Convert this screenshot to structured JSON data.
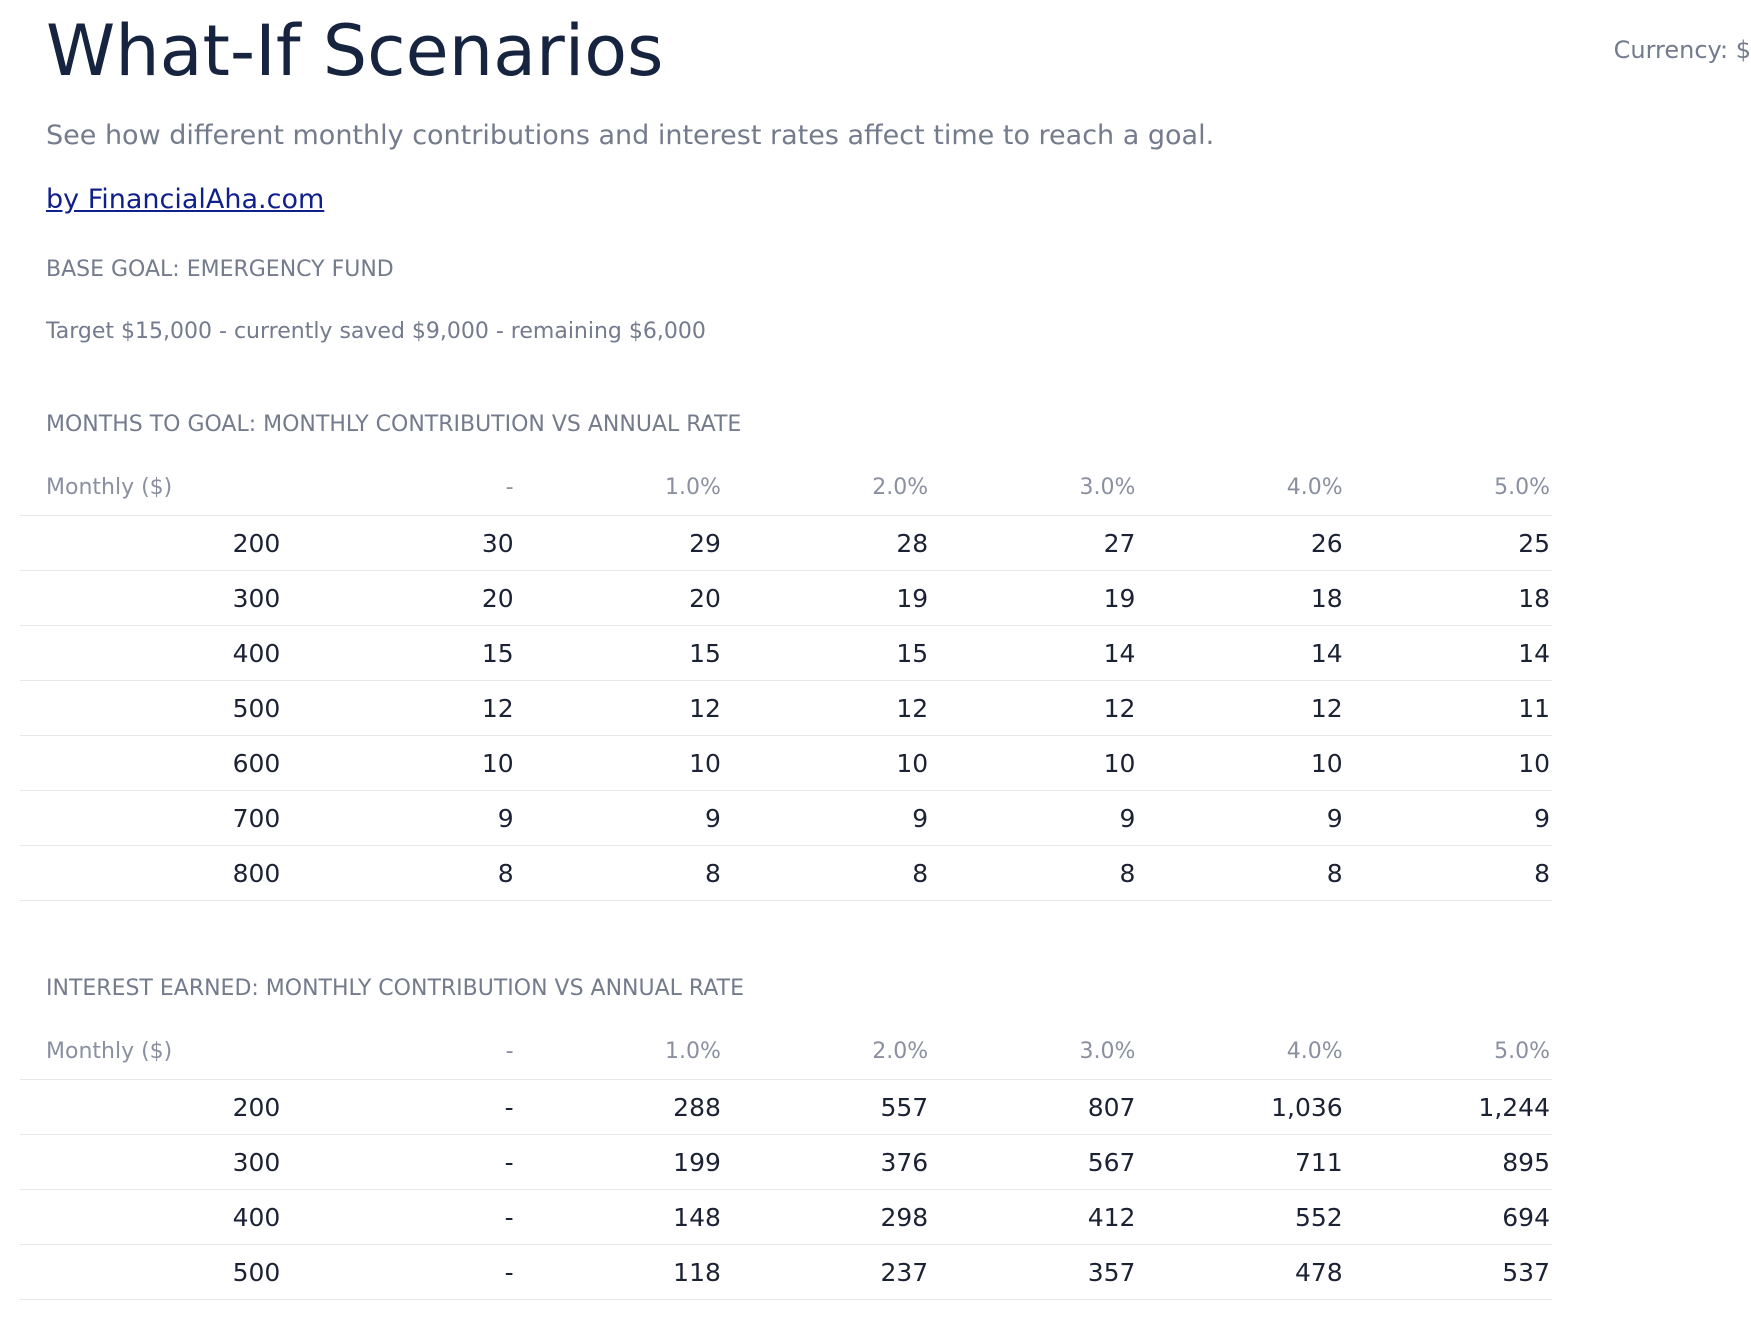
{
  "header": {
    "title": "What-If Scenarios",
    "currency": "Currency: $",
    "subtitle": "See how different monthly contributions and interest rates affect time to reach a goal.",
    "byline": "by FinancialAha.com"
  },
  "goal": {
    "heading": "BASE GOAL: EMERGENCY FUND",
    "detail": "Target $15,000 - currently saved $9,000 - remaining $6,000"
  },
  "months_table": {
    "heading": "MONTHS TO GOAL: MONTHLY CONTRIBUTION VS ANNUAL RATE",
    "columns": [
      "Monthly ($)",
      "-",
      "1.0%",
      "2.0%",
      "3.0%",
      "4.0%",
      "5.0%"
    ],
    "rows": [
      [
        "200",
        "30",
        "29",
        "28",
        "27",
        "26",
        "25"
      ],
      [
        "300",
        "20",
        "20",
        "19",
        "19",
        "18",
        "18"
      ],
      [
        "400",
        "15",
        "15",
        "15",
        "14",
        "14",
        "14"
      ],
      [
        "500",
        "12",
        "12",
        "12",
        "12",
        "12",
        "11"
      ],
      [
        "600",
        "10",
        "10",
        "10",
        "10",
        "10",
        "10"
      ],
      [
        "700",
        "9",
        "9",
        "9",
        "9",
        "9",
        "9"
      ],
      [
        "800",
        "8",
        "8",
        "8",
        "8",
        "8",
        "8"
      ]
    ]
  },
  "interest_table": {
    "heading": "INTEREST EARNED: MONTHLY CONTRIBUTION VS ANNUAL RATE",
    "columns": [
      "Monthly ($)",
      "-",
      "1.0%",
      "2.0%",
      "3.0%",
      "4.0%",
      "5.0%"
    ],
    "rows": [
      [
        "200",
        "-",
        "288",
        "557",
        "807",
        "1,036",
        "1,244"
      ],
      [
        "300",
        "-",
        "199",
        "376",
        "567",
        "711",
        "895"
      ],
      [
        "400",
        "-",
        "148",
        "298",
        "412",
        "552",
        "694"
      ],
      [
        "500",
        "-",
        "118",
        "237",
        "357",
        "478",
        "537"
      ]
    ]
  }
}
